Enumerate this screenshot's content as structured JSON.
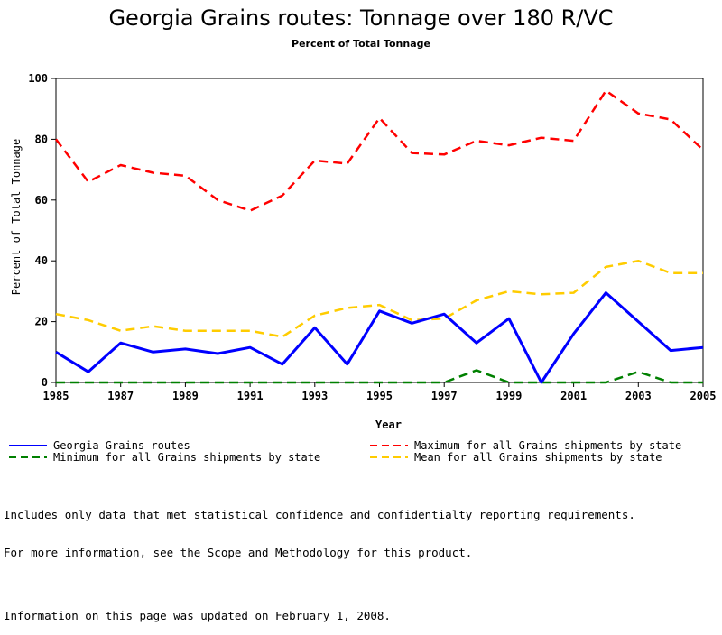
{
  "chart_data": {
    "type": "line",
    "title": "Georgia Grains routes: Tonnage over 180 R/VC",
    "subtitle": "Percent of Total Tonnage",
    "xlabel": "Year",
    "ylabel": "Percent of Total Tonnage",
    "xlim": [
      1985,
      2005
    ],
    "ylim": [
      0,
      100
    ],
    "x_ticks": [
      "1985",
      "1987",
      "1989",
      "1991",
      "1993",
      "1995",
      "1997",
      "1999",
      "2001",
      "2003",
      "2005"
    ],
    "y_ticks": [
      "0",
      "20",
      "40",
      "60",
      "80",
      "100"
    ],
    "x": [
      1985,
      1986,
      1987,
      1988,
      1989,
      1990,
      1991,
      1992,
      1993,
      1994,
      1995,
      1996,
      1997,
      1998,
      1999,
      2000,
      2001,
      2002,
      2003,
      2004,
      2005
    ],
    "series": [
      {
        "name": "Georgia Grains routes",
        "color": "#0000ff",
        "style": "solid",
        "values": [
          10,
          3.5,
          13,
          10,
          11,
          9.5,
          11.5,
          6,
          18,
          6,
          23.5,
          19.5,
          22.5,
          13,
          21,
          0,
          16,
          29.5,
          20,
          10.5,
          11.5
        ]
      },
      {
        "name": "Maximum for all Grains shipments by state",
        "color": "#ff0000",
        "style": "dashed",
        "values": [
          80,
          66,
          71.5,
          69,
          68,
          60,
          56.5,
          61.5,
          73,
          72,
          87,
          75.5,
          75,
          79.5,
          78,
          80.5,
          79.5,
          96,
          88.5,
          86.5,
          76.5
        ]
      },
      {
        "name": "Minimum for all Grains shipments by state",
        "color": "#008000",
        "style": "dashed",
        "values": [
          0,
          0,
          0,
          0,
          0,
          0,
          0,
          0,
          0,
          0,
          0,
          0,
          0,
          4,
          0,
          0,
          0,
          0,
          3.5,
          0,
          0
        ]
      },
      {
        "name": "Mean for all Grains shipments by state",
        "color": "#ffcc00",
        "style": "dashed",
        "values": [
          22.5,
          20.5,
          17,
          18.5,
          17,
          17,
          17,
          15,
          22,
          24.5,
          25.5,
          20.5,
          21,
          27,
          30,
          29,
          29.5,
          38,
          40,
          36,
          36
        ]
      }
    ],
    "legend_position": "bottom"
  },
  "notes": {
    "line1": "Includes only data that met statistical confidence and confidentialty reporting requirements.",
    "line2": "For more information, see the Scope and Methodology for this product.",
    "updated": "Information on this page was updated on February 1, 2008."
  }
}
